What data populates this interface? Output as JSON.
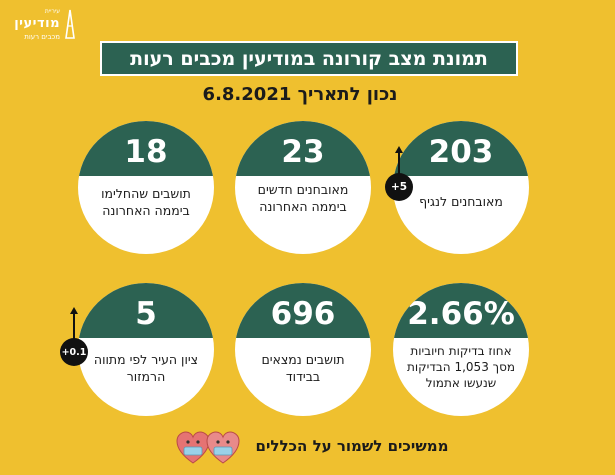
{
  "logo": {
    "tiny": "עיריית",
    "main": "מודיעין",
    "sub": "מכבים רעות"
  },
  "title": "תמונת מצב קורונה במודיעין מכבים רעות",
  "date_line": "נכון לתאריך 6.8.2021",
  "cards": [
    {
      "value": "203",
      "label": "מאובחנים לנגיף"
    },
    {
      "value": "23",
      "label": "מאובחנים חדשים ביממה האחרונה"
    },
    {
      "value": "18",
      "label": "תושבים שהחלימו ביממה האחרונה"
    },
    {
      "value": "2.66%",
      "label": "אחוז בדיקות חיוביות מסך 1,053 הבדיקות שנעשו אתמול"
    },
    {
      "value": "696",
      "label": "תושבים נמצאים בבידוד"
    },
    {
      "value": "5",
      "label": "ציון העיר לפי מתווה הרמזור"
    }
  ],
  "badges": {
    "diagnosed_change": "+5",
    "score_change": "+0.1"
  },
  "footer": "ממשיכים לשמור על הכללים",
  "colors": {
    "background": "#efc02f",
    "accent_green": "#2c6252",
    "card": "#ffffff",
    "badge": "#111111",
    "heart": "#e57373"
  },
  "icons": {
    "badge_arrow": "up-arrow-icon",
    "footer_art": "masked-hearts-icon",
    "logo_emblem": "city-emblem-icon"
  }
}
